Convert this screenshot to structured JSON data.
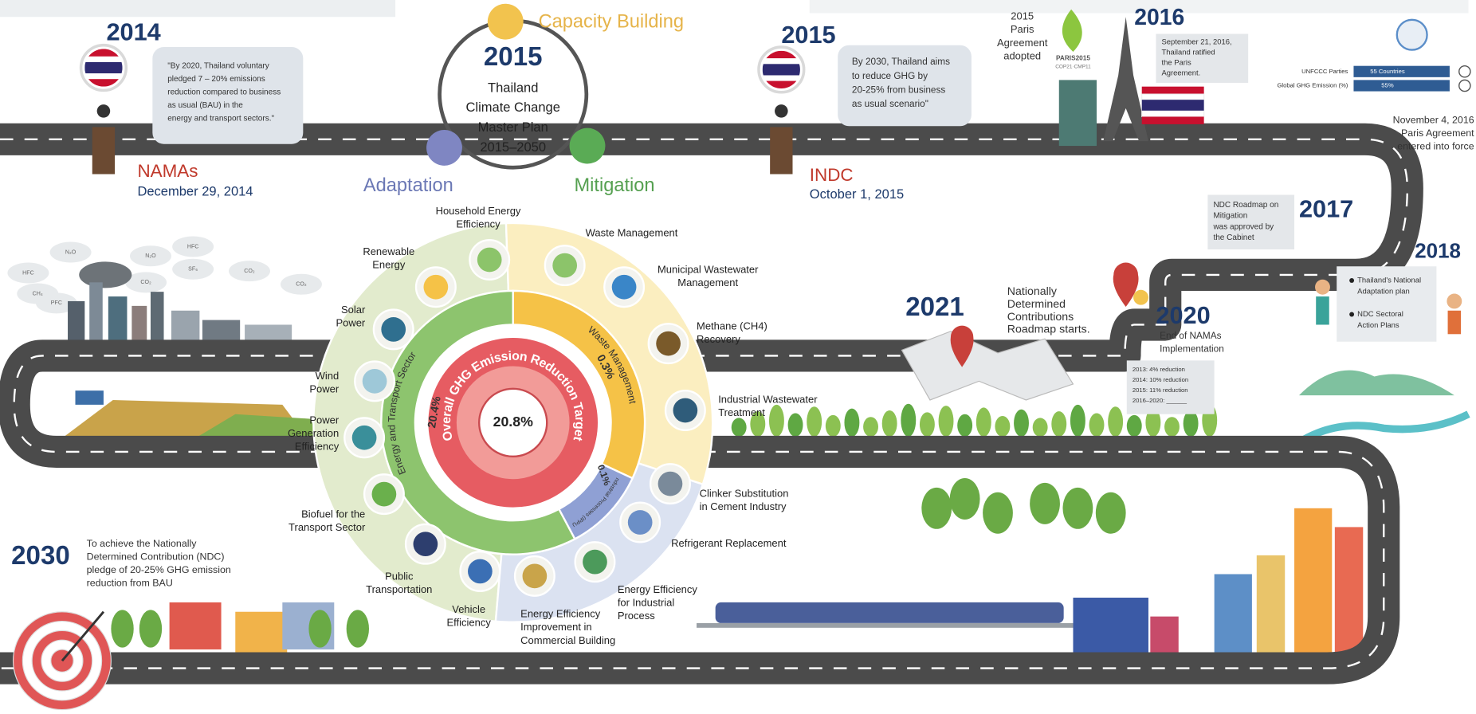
{
  "nama": {
    "year": "2014",
    "quote": [
      "\"By 2020, Thailand voluntary",
      "pledged 7 – 20% emissions",
      "reduction compared to business",
      "as usual (BAU) in the",
      "energy and transport sectors.\""
    ],
    "event": "NAMAs",
    "date": "December 29, 2014"
  },
  "master_plan": {
    "year": "2015",
    "title": [
      "Thailand",
      "Climate Change",
      "Master Plan",
      "2015–2050"
    ],
    "capacity": "Capacity Building",
    "adaptation": "Adaptation",
    "mitigation": "Mitigation"
  },
  "indc": {
    "year": "2015",
    "quote": [
      "By 2030, Thailand aims",
      "to reduce GHG by",
      "20-25% from business",
      "as usual scenario\""
    ],
    "event": "INDC",
    "date": "October 1, 2015"
  },
  "paris": {
    "adopted": [
      "2015",
      "Paris",
      "Agreement",
      "adopted"
    ],
    "logo": "PARIS2015",
    "logo_sub": "COP21·CMP11",
    "year": "2016",
    "note": [
      "September 21, 2016,",
      "Thailand ratified",
      "the Paris",
      "Agreement."
    ]
  },
  "entry_into_force": {
    "rows": [
      {
        "label": "UNFCCC Parties",
        "value": "55 Countries"
      },
      {
        "label": "Global GHG Emission (%)",
        "value": "55%"
      }
    ],
    "note": [
      "November 4, 2016",
      "Paris Agreement",
      "entered into force"
    ]
  },
  "y2017": {
    "year": "2017",
    "note": [
      "NDC Roadmap on",
      "Mitigation",
      "was approved by",
      "the Cabinet"
    ]
  },
  "y2018": {
    "year": "2018",
    "items": [
      [
        "Thailand's National",
        "Adaptation plan"
      ],
      [
        "NDC Sectoral",
        "Action Plans"
      ]
    ]
  },
  "y2020": {
    "year": "2020",
    "note": [
      "End of NAMAs",
      "Implementation"
    ],
    "table": [
      "2013: 4% reduction",
      "2014: 10% reduction",
      "2015: 11% reduction",
      "2016–2020: ______"
    ]
  },
  "y2021": {
    "year": "2021",
    "note": [
      "Nationally",
      "Determined",
      "Contributions",
      "Roadmap starts."
    ]
  },
  "y2030": {
    "year": "2030",
    "note": [
      "To achieve the Nationally",
      "Determined Contribution (NDC)",
      "pledge of 20-25% GHG emission",
      "reduction from BAU"
    ]
  },
  "target": {
    "title": "Overall GHG Emission Reduction Target",
    "value": "20.8%",
    "sectors": [
      {
        "name": "Energy and Transport Sector",
        "value": "20.4%"
      },
      {
        "name": "Waste Management",
        "value": "0.3%"
      },
      {
        "name": "Industrial Processes (IPPU)",
        "value": "0.1%"
      }
    ]
  },
  "measures": [
    [
      "Household Energy",
      "Efficiency"
    ],
    [
      "Renewable",
      "Energy"
    ],
    [
      "Solar",
      "Power"
    ],
    [
      "Wind",
      "Power"
    ],
    [
      "Power",
      "Generation",
      "Efficiency"
    ],
    [
      "Biofuel for the",
      "Transport Sector"
    ],
    [
      "Public",
      "Transportation"
    ],
    [
      "Vehicle",
      "Efficiency"
    ],
    [
      "Energy Efficiency",
      "Improvement in",
      "Commercial Building"
    ],
    [
      "Energy Efficiency",
      "for Industrial",
      "Process"
    ],
    [
      "Refrigerant Replacement"
    ],
    [
      "Clinker Substitution",
      "in Cement Industry"
    ],
    [
      "Industrial Wastewater",
      "Treatment"
    ],
    [
      "Methane (CH4)",
      "Recovery"
    ],
    [
      "Municipal Wastewater",
      "Management"
    ],
    [
      "Waste Management"
    ]
  ],
  "pollutants": [
    "HFC",
    "N₂O",
    "SF₆",
    "CO₂",
    "CH₄",
    "PFC"
  ]
}
